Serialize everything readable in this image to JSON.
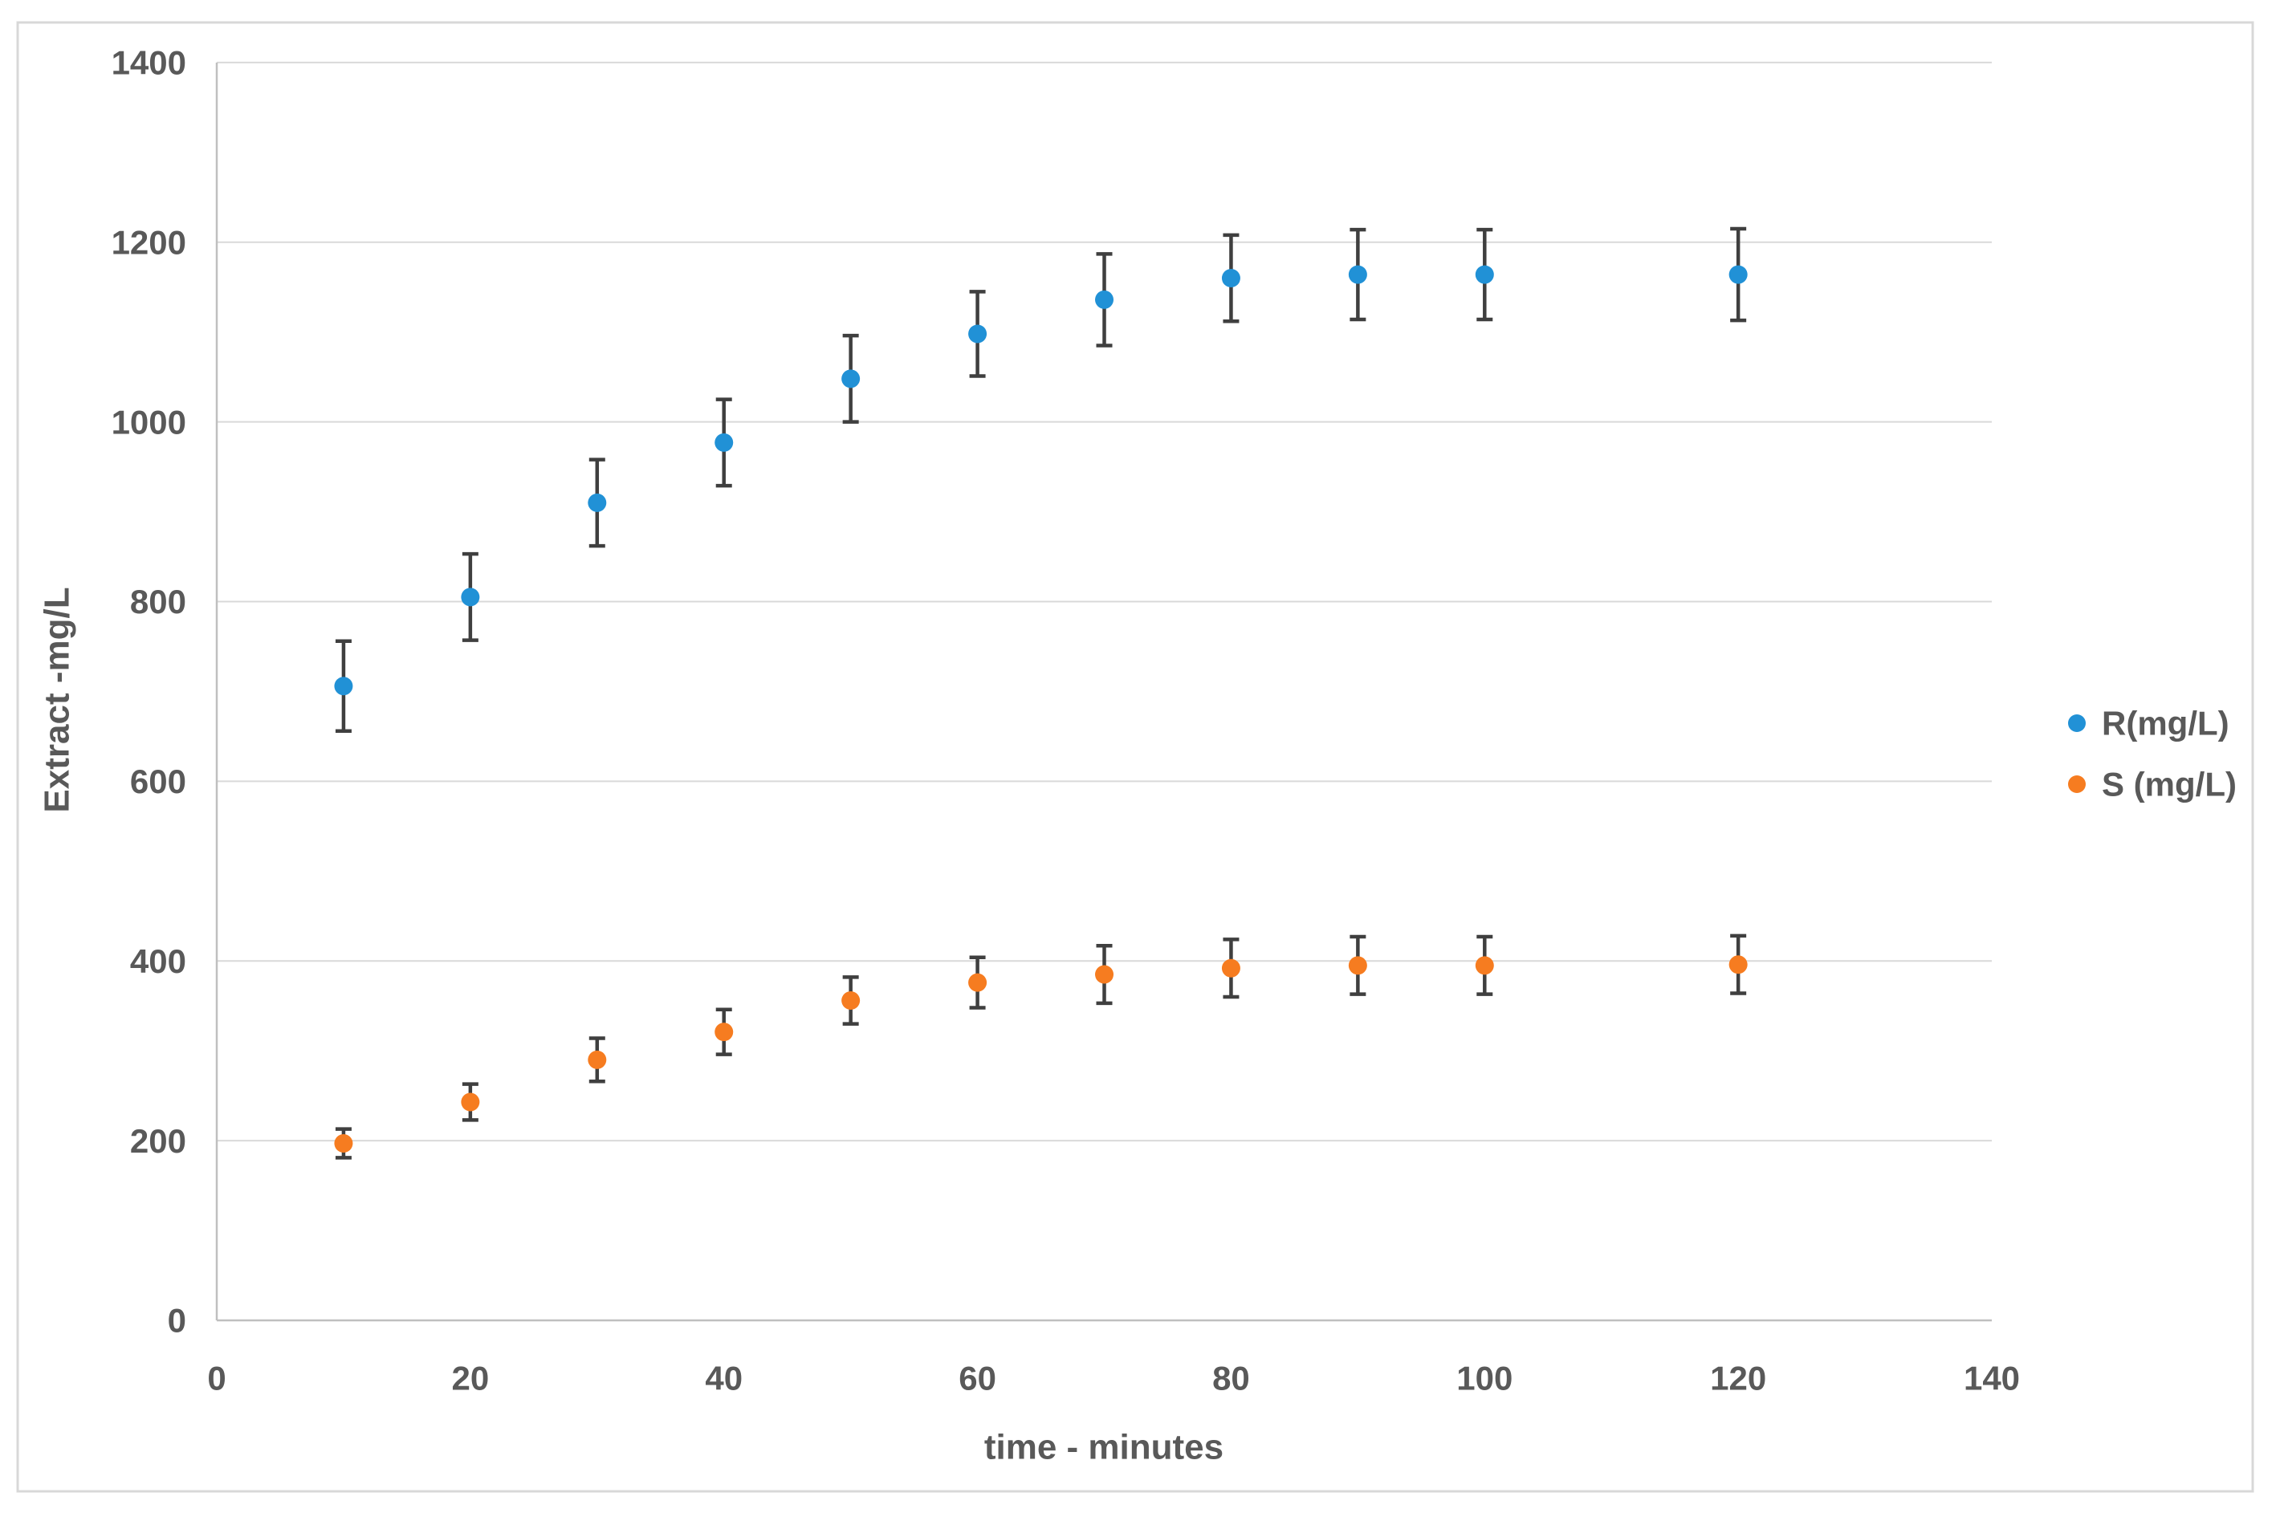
{
  "chart_data": {
    "type": "scatter",
    "title": "",
    "xlabel": "time  - minutes",
    "ylabel": "Extract -mg/L",
    "xlim": [
      0,
      140
    ],
    "ylim": [
      0,
      1400
    ],
    "x_ticks": [
      0,
      20,
      40,
      60,
      80,
      100,
      120,
      140
    ],
    "y_ticks": [
      0,
      200,
      400,
      600,
      800,
      1000,
      1200,
      1400
    ],
    "grid": "horizontal",
    "legend_position": "right-middle",
    "series": [
      {
        "name": "R(mg/L)",
        "color": "#2191D6",
        "x": [
          10,
          20,
          30,
          40,
          50,
          60,
          70,
          80,
          90,
          100,
          120
        ],
        "y": [
          706,
          805,
          910,
          977,
          1048,
          1098,
          1136,
          1160,
          1164,
          1164,
          1164
        ],
        "yerr": [
          50,
          48,
          48,
          48,
          48,
          47,
          51,
          48,
          50,
          50,
          51
        ]
      },
      {
        "name": "S (mg/L)",
        "color": "#F67C20",
        "x": [
          10,
          20,
          30,
          40,
          50,
          60,
          70,
          80,
          90,
          100,
          120
        ],
        "y": [
          197,
          243,
          290,
          321,
          356,
          376,
          385,
          392,
          395,
          395,
          396
        ],
        "yerr": [
          16,
          20,
          24,
          25,
          26,
          28,
          32,
          32,
          32,
          32,
          32
        ]
      }
    ]
  },
  "colors": {
    "background": "#FFFFFF",
    "chart_border": "#D8D8D8",
    "gridline": "#D9D9D9",
    "axis_line": "#BFBFBF",
    "error_bar": "#3F3F3F",
    "text": "#595959",
    "series_r": "#2191D6",
    "series_s": "#F67C20"
  }
}
